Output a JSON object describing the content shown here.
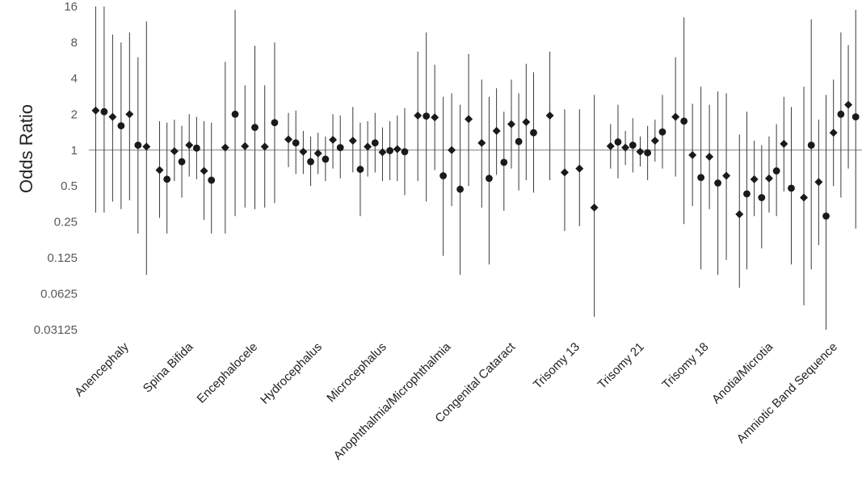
{
  "chart_data": {
    "type": "scatter",
    "title": "",
    "ylabel": "Odds Ratio",
    "xlabel": "",
    "y_scale": "log2",
    "ylim": [
      0.03125,
      16
    ],
    "y_ticks": [
      "16",
      "8",
      "4",
      "2",
      "1",
      "0.5",
      "0.25",
      "0.125",
      "0.0625",
      "0.03125"
    ],
    "y_tick_values": [
      16,
      8,
      4,
      2,
      1,
      0.5,
      0.25,
      0.125,
      0.0625,
      0.03125
    ],
    "reference_line": 1,
    "grid": false,
    "legend": "none",
    "colors": {
      "marker": "#1a1a1a",
      "error_bar": "#3a3a3a",
      "axis": "#7f7f7f"
    },
    "categories": [
      {
        "label": "Anencephaly",
        "points": [
          {
            "marker": "diamond",
            "or": 2.15,
            "lo": 0.3,
            "hi": 16
          },
          {
            "marker": "circle",
            "or": 2.1,
            "lo": 0.3,
            "hi": 16
          },
          {
            "marker": "diamond",
            "or": 1.9,
            "lo": 0.37,
            "hi": 9.3
          },
          {
            "marker": "circle",
            "or": 1.6,
            "lo": 0.32,
            "hi": 8.0
          },
          {
            "marker": "diamond",
            "or": 2.0,
            "lo": 0.38,
            "hi": 9.7
          },
          {
            "marker": "circle",
            "or": 1.1,
            "lo": 0.2,
            "hi": 6.0
          },
          {
            "marker": "diamond",
            "or": 1.07,
            "lo": 0.09,
            "hi": 12.0
          }
        ]
      },
      {
        "label": "Spina Bifida",
        "points": [
          {
            "marker": "diamond",
            "or": 0.68,
            "lo": 0.27,
            "hi": 1.75
          },
          {
            "marker": "circle",
            "or": 0.57,
            "lo": 0.2,
            "hi": 1.7
          },
          {
            "marker": "diamond",
            "or": 0.98,
            "lo": 0.55,
            "hi": 1.8
          },
          {
            "marker": "circle",
            "or": 0.8,
            "lo": 0.4,
            "hi": 1.6
          },
          {
            "marker": "diamond",
            "or": 1.1,
            "lo": 0.6,
            "hi": 2.0
          },
          {
            "marker": "circle",
            "or": 1.04,
            "lo": 0.57,
            "hi": 1.9
          },
          {
            "marker": "diamond",
            "or": 0.67,
            "lo": 0.26,
            "hi": 1.75
          },
          {
            "marker": "circle",
            "or": 0.56,
            "lo": 0.2,
            "hi": 1.7
          }
        ]
      },
      {
        "label": "Encephalocele",
        "points": [
          {
            "marker": "diamond",
            "or": 1.05,
            "lo": 0.2,
            "hi": 5.5
          },
          {
            "marker": "circle",
            "or": 2.0,
            "lo": 0.28,
            "hi": 15.0
          },
          {
            "marker": "diamond",
            "or": 1.08,
            "lo": 0.33,
            "hi": 3.5
          },
          {
            "marker": "circle",
            "or": 1.55,
            "lo": 0.32,
            "hi": 7.5
          },
          {
            "marker": "diamond",
            "or": 1.07,
            "lo": 0.33,
            "hi": 3.5
          },
          {
            "marker": "circle",
            "or": 1.7,
            "lo": 0.36,
            "hi": 8.0
          }
        ]
      },
      {
        "label": "Hydrocephalus",
        "points": [
          {
            "marker": "diamond",
            "or": 1.23,
            "lo": 0.72,
            "hi": 2.05
          },
          {
            "marker": "circle",
            "or": 1.15,
            "lo": 0.63,
            "hi": 2.15
          },
          {
            "marker": "diamond",
            "or": 0.97,
            "lo": 0.63,
            "hi": 1.45
          },
          {
            "marker": "circle",
            "or": 0.8,
            "lo": 0.5,
            "hi": 1.3
          },
          {
            "marker": "diamond",
            "or": 0.94,
            "lo": 0.63,
            "hi": 1.4
          },
          {
            "marker": "circle",
            "or": 0.84,
            "lo": 0.55,
            "hi": 1.3
          },
          {
            "marker": "diamond",
            "or": 1.22,
            "lo": 0.7,
            "hi": 2.0
          },
          {
            "marker": "circle",
            "or": 1.05,
            "lo": 0.58,
            "hi": 1.95
          }
        ]
      },
      {
        "label": "Microcephalus",
        "points": [
          {
            "marker": "diamond",
            "or": 1.2,
            "lo": 0.65,
            "hi": 2.3
          },
          {
            "marker": "circle",
            "or": 0.69,
            "lo": 0.28,
            "hi": 1.7
          },
          {
            "marker": "diamond",
            "or": 1.07,
            "lo": 0.6,
            "hi": 1.75
          },
          {
            "marker": "circle",
            "or": 1.15,
            "lo": 0.65,
            "hi": 2.05
          },
          {
            "marker": "diamond",
            "or": 0.96,
            "lo": 0.55,
            "hi": 1.55
          },
          {
            "marker": "circle",
            "or": 0.99,
            "lo": 0.56,
            "hi": 1.75
          },
          {
            "marker": "diamond",
            "or": 1.02,
            "lo": 0.55,
            "hi": 1.95
          },
          {
            "marker": "circle",
            "or": 0.97,
            "lo": 0.42,
            "hi": 2.25
          }
        ]
      },
      {
        "label": "Anophthalmia/Microphthalmia",
        "points": [
          {
            "marker": "diamond",
            "or": 1.95,
            "lo": 0.55,
            "hi": 6.7
          },
          {
            "marker": "circle",
            "or": 1.93,
            "lo": 0.37,
            "hi": 9.7
          },
          {
            "marker": "diamond",
            "or": 1.88,
            "lo": 0.68,
            "hi": 5.2
          },
          {
            "marker": "circle",
            "or": 0.61,
            "lo": 0.13,
            "hi": 2.8
          },
          {
            "marker": "diamond",
            "or": 1.0,
            "lo": 0.34,
            "hi": 3.0
          },
          {
            "marker": "circle",
            "or": 0.47,
            "lo": 0.09,
            "hi": 2.4
          },
          {
            "marker": "diamond",
            "or": 1.82,
            "lo": 0.5,
            "hi": 6.4
          }
        ]
      },
      {
        "label": "Congenital Cataract",
        "points": [
          {
            "marker": "diamond",
            "or": 1.15,
            "lo": 0.33,
            "hi": 3.9
          },
          {
            "marker": "circle",
            "or": 0.58,
            "lo": 0.11,
            "hi": 2.8
          },
          {
            "marker": "diamond",
            "or": 1.45,
            "lo": 0.62,
            "hi": 3.3
          },
          {
            "marker": "circle",
            "or": 0.79,
            "lo": 0.31,
            "hi": 2.1
          },
          {
            "marker": "diamond",
            "or": 1.65,
            "lo": 0.7,
            "hi": 3.9
          },
          {
            "marker": "circle",
            "or": 1.18,
            "lo": 0.46,
            "hi": 3.0
          },
          {
            "marker": "diamond",
            "or": 1.72,
            "lo": 0.56,
            "hi": 5.3
          },
          {
            "marker": "circle",
            "or": 1.4,
            "lo": 0.44,
            "hi": 4.5
          }
        ]
      },
      {
        "label": "Trisomy 13",
        "points": [
          {
            "marker": "diamond",
            "or": 1.95,
            "lo": 0.56,
            "hi": 6.7
          },
          {
            "marker": "diamond",
            "or": 0.65,
            "lo": 0.21,
            "hi": 2.2
          },
          {
            "marker": "diamond",
            "or": 0.7,
            "lo": 0.23,
            "hi": 2.2
          },
          {
            "marker": "diamond",
            "or": 0.33,
            "lo": 0.04,
            "hi": 2.9
          }
        ]
      },
      {
        "label": "Trisomy 21",
        "points": [
          {
            "marker": "diamond",
            "or": 1.08,
            "lo": 0.7,
            "hi": 1.65
          },
          {
            "marker": "circle",
            "or": 1.17,
            "lo": 0.58,
            "hi": 2.4
          },
          {
            "marker": "diamond",
            "or": 1.05,
            "lo": 0.75,
            "hi": 1.45
          },
          {
            "marker": "circle",
            "or": 1.1,
            "lo": 0.65,
            "hi": 1.85
          },
          {
            "marker": "diamond",
            "or": 0.97,
            "lo": 0.73,
            "hi": 1.3
          },
          {
            "marker": "circle",
            "or": 0.95,
            "lo": 0.56,
            "hi": 1.6
          },
          {
            "marker": "diamond",
            "or": 1.2,
            "lo": 0.8,
            "hi": 1.8
          },
          {
            "marker": "circle",
            "or": 1.42,
            "lo": 0.7,
            "hi": 2.9
          }
        ]
      },
      {
        "label": "Trisomy 18",
        "points": [
          {
            "marker": "diamond",
            "or": 1.9,
            "lo": 0.6,
            "hi": 6.0
          },
          {
            "marker": "circle",
            "or": 1.75,
            "lo": 0.24,
            "hi": 13.0
          },
          {
            "marker": "diamond",
            "or": 0.91,
            "lo": 0.34,
            "hi": 2.45
          },
          {
            "marker": "circle",
            "or": 0.59,
            "lo": 0.1,
            "hi": 3.4
          },
          {
            "marker": "diamond",
            "or": 0.88,
            "lo": 0.32,
            "hi": 2.4
          },
          {
            "marker": "circle",
            "or": 0.53,
            "lo": 0.09,
            "hi": 3.1
          },
          {
            "marker": "diamond",
            "or": 0.61,
            "lo": 0.12,
            "hi": 3.0
          }
        ]
      },
      {
        "label": "Anotia/Microtia",
        "points": [
          {
            "marker": "diamond",
            "or": 0.29,
            "lo": 0.07,
            "hi": 1.35
          },
          {
            "marker": "circle",
            "or": 0.43,
            "lo": 0.1,
            "hi": 2.1
          },
          {
            "marker": "diamond",
            "or": 0.57,
            "lo": 0.28,
            "hi": 1.2
          },
          {
            "marker": "circle",
            "or": 0.4,
            "lo": 0.15,
            "hi": 1.1
          },
          {
            "marker": "diamond",
            "or": 0.58,
            "lo": 0.3,
            "hi": 1.3
          },
          {
            "marker": "circle",
            "or": 0.67,
            "lo": 0.28,
            "hi": 1.65
          },
          {
            "marker": "diamond",
            "or": 1.13,
            "lo": 0.45,
            "hi": 2.8
          },
          {
            "marker": "circle",
            "or": 0.48,
            "lo": 0.11,
            "hi": 2.3
          }
        ]
      },
      {
        "label": "Amniotic Band Sequence",
        "points": [
          {
            "marker": "diamond",
            "or": 0.4,
            "lo": 0.05,
            "hi": 3.4
          },
          {
            "marker": "circle",
            "or": 1.1,
            "lo": 0.1,
            "hi": 12.5
          },
          {
            "marker": "diamond",
            "or": 0.54,
            "lo": 0.16,
            "hi": 1.8
          },
          {
            "marker": "circle",
            "or": 0.28,
            "lo": 0.03125,
            "hi": 2.9
          },
          {
            "marker": "diamond",
            "or": 1.4,
            "lo": 0.5,
            "hi": 3.9
          },
          {
            "marker": "circle",
            "or": 2.0,
            "lo": 0.4,
            "hi": 9.7
          },
          {
            "marker": "diamond",
            "or": 2.4,
            "lo": 0.7,
            "hi": 7.6
          },
          {
            "marker": "circle",
            "or": 1.9,
            "lo": 0.22,
            "hi": 15.0
          }
        ]
      }
    ]
  }
}
